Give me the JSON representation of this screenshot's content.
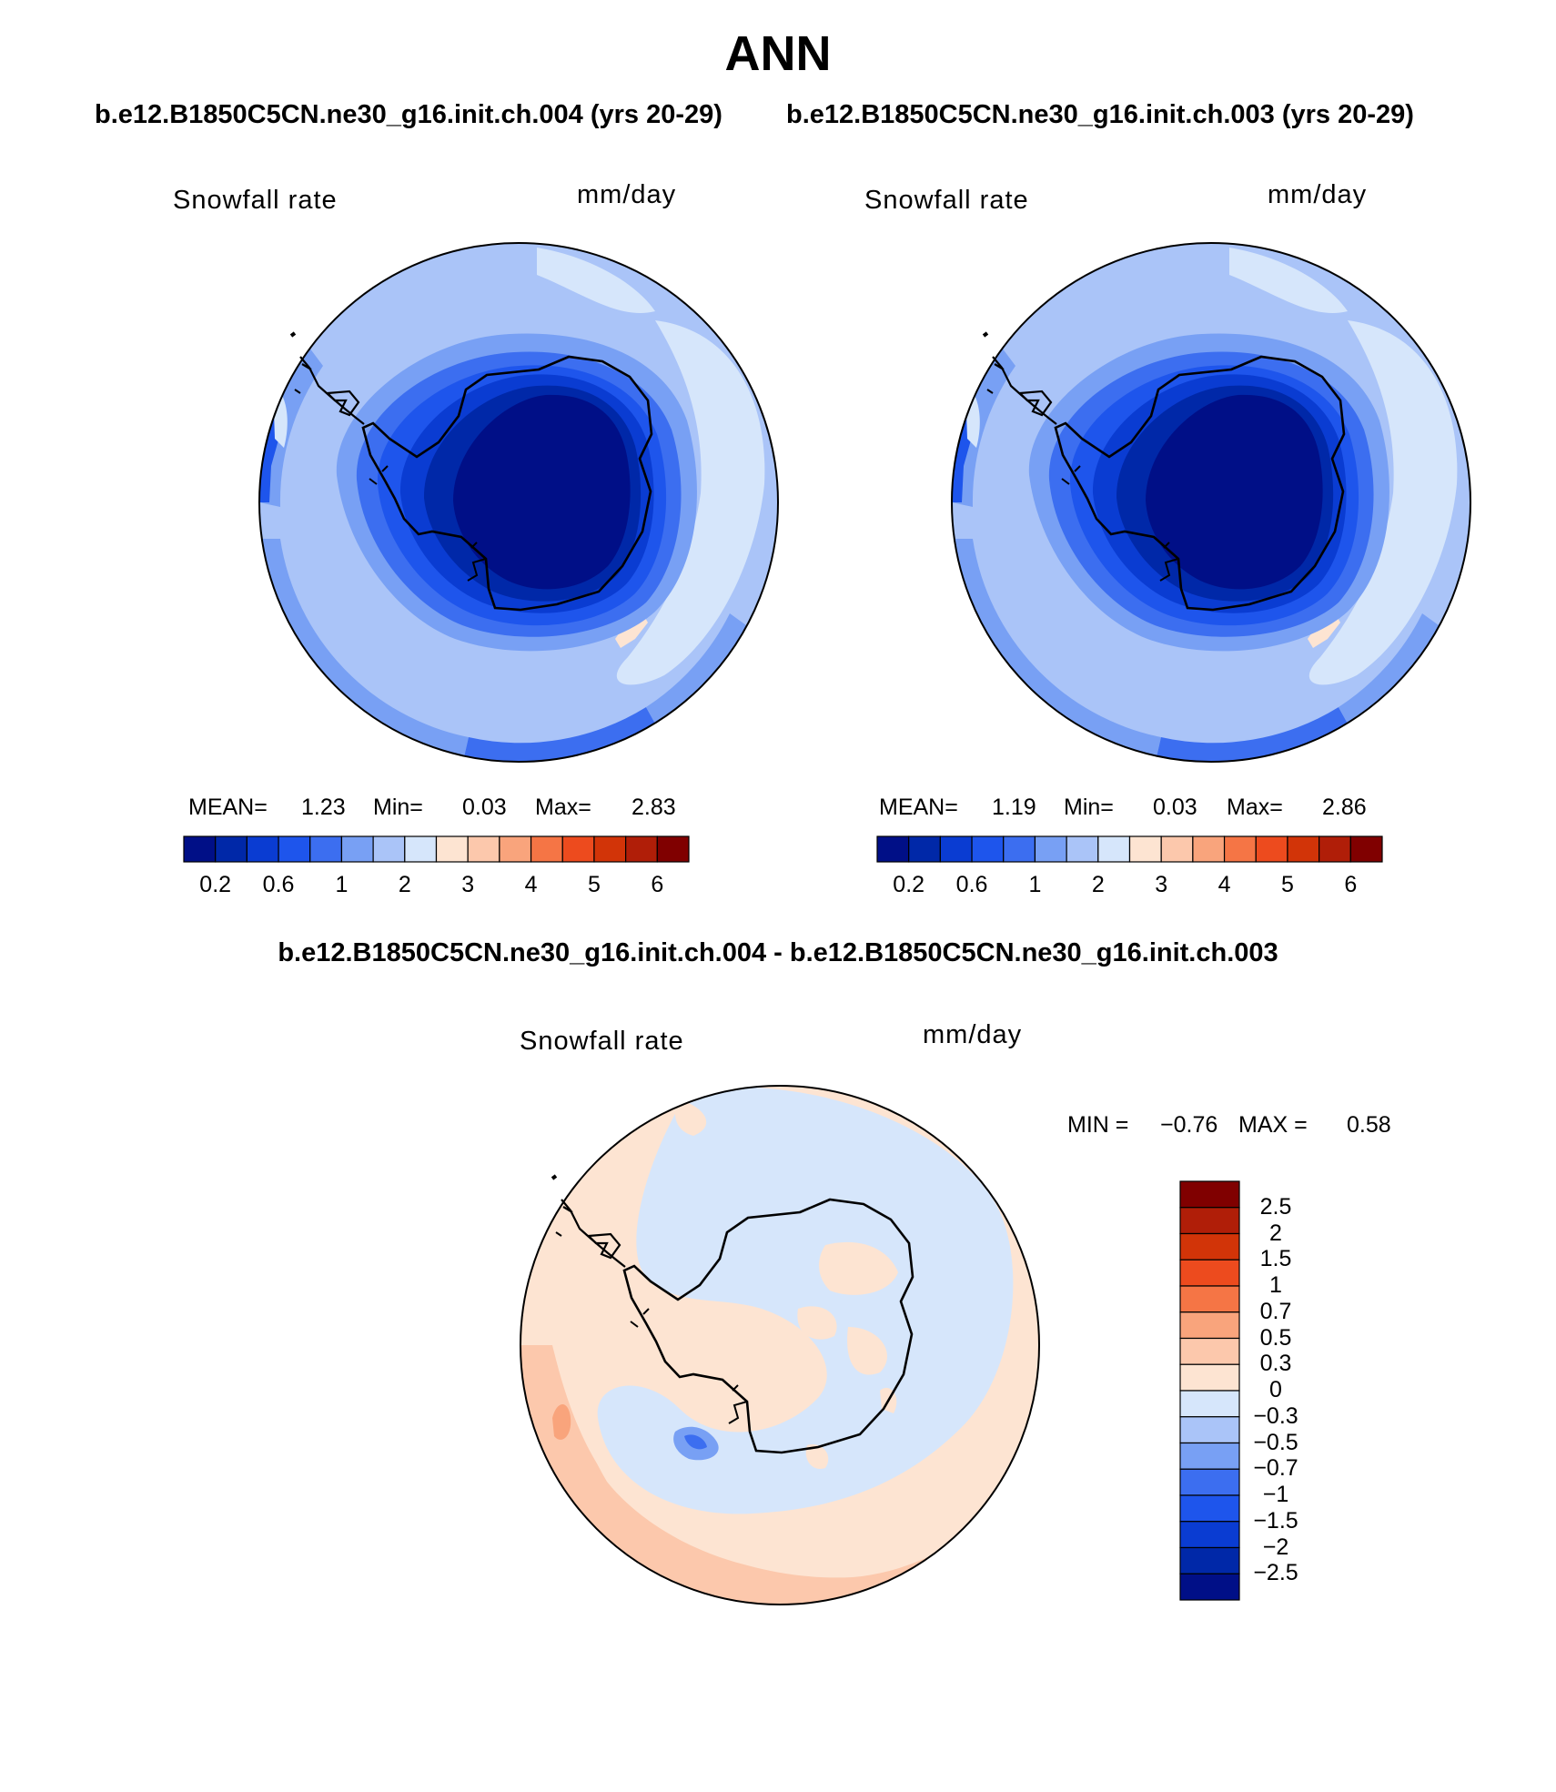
{
  "figure": {
    "title": "ANN",
    "panel1_subtitle": "b.e12.B1850C5CN.ne30_g16.init.ch.004 (yrs 20-29)",
    "panel2_subtitle": "b.e12.B1850C5CN.ne30_g16.init.ch.003 (yrs 20-29)",
    "diff_subtitle": "b.e12.B1850C5CN.ne30_g16.init.ch.004 - b.e12.B1850C5CN.ne30_g16.init.ch.003"
  },
  "chart_data": [
    {
      "type": "heatmap",
      "map": "polar-south",
      "variable_label": "Snowfall rate",
      "units": "mm/day",
      "stats": {
        "mean_label": "MEAN=",
        "mean": "1.23",
        "min_label": "Min=",
        "min": "0.03",
        "max_label": "Max=",
        "max": "2.83"
      },
      "colorbar_levels": [
        0.2,
        0.4,
        0.6,
        0.8,
        1,
        1.5,
        2,
        2.5,
        3,
        3.5,
        4,
        4.5,
        5,
        5.5,
        6
      ],
      "colorbar_tick_labels": [
        "0.2",
        "0.6",
        "1",
        "2",
        "3",
        "4",
        "5",
        "6"
      ],
      "colors": [
        "#000f87",
        "#0028a8",
        "#0a3cd2",
        "#1e55ec",
        "#3c6ef0",
        "#78a0f4",
        "#aac4f8",
        "#d6e6fb",
        "#fde4d2",
        "#fcc8ac",
        "#f9a47c",
        "#f57545",
        "#ed4b1e",
        "#d23408",
        "#b01e08",
        "#800000"
      ]
    },
    {
      "type": "heatmap",
      "map": "polar-south",
      "variable_label": "Snowfall rate",
      "units": "mm/day",
      "stats": {
        "mean_label": "MEAN=",
        "mean": "1.19",
        "min_label": "Min=",
        "min": "0.03",
        "max_label": "Max=",
        "max": "2.86"
      },
      "colorbar_levels": [
        0.2,
        0.4,
        0.6,
        0.8,
        1,
        1.5,
        2,
        2.5,
        3,
        3.5,
        4,
        4.5,
        5,
        5.5,
        6
      ],
      "colorbar_tick_labels": [
        "0.2",
        "0.6",
        "1",
        "2",
        "3",
        "4",
        "5",
        "6"
      ],
      "colors": [
        "#000f87",
        "#0028a8",
        "#0a3cd2",
        "#1e55ec",
        "#3c6ef0",
        "#78a0f4",
        "#aac4f8",
        "#d6e6fb",
        "#fde4d2",
        "#fcc8ac",
        "#f9a47c",
        "#f57545",
        "#ed4b1e",
        "#d23408",
        "#b01e08",
        "#800000"
      ]
    },
    {
      "type": "heatmap",
      "map": "polar-south",
      "variable_label": "Snowfall rate",
      "units": "mm/day",
      "stats": {
        "min_label": "MIN =",
        "min": "−0.76",
        "max_label": "MAX =",
        "max": "0.58"
      },
      "colorbar_levels": [
        "2.5",
        "2",
        "1.5",
        "1",
        "0.7",
        "0.5",
        "0.3",
        "0",
        "−0.3",
        "−0.5",
        "−0.7",
        "−1",
        "−1.5",
        "−2",
        "−2.5"
      ],
      "colors": [
        "#800000",
        "#b01e08",
        "#d23408",
        "#ed4b1e",
        "#f57545",
        "#f9a47c",
        "#fcc8ac",
        "#fde4d2",
        "#d6e6fb",
        "#aac4f8",
        "#78a0f4",
        "#3c6ef0",
        "#1e55ec",
        "#0a3cd2",
        "#0028a8",
        "#000f87"
      ]
    }
  ]
}
